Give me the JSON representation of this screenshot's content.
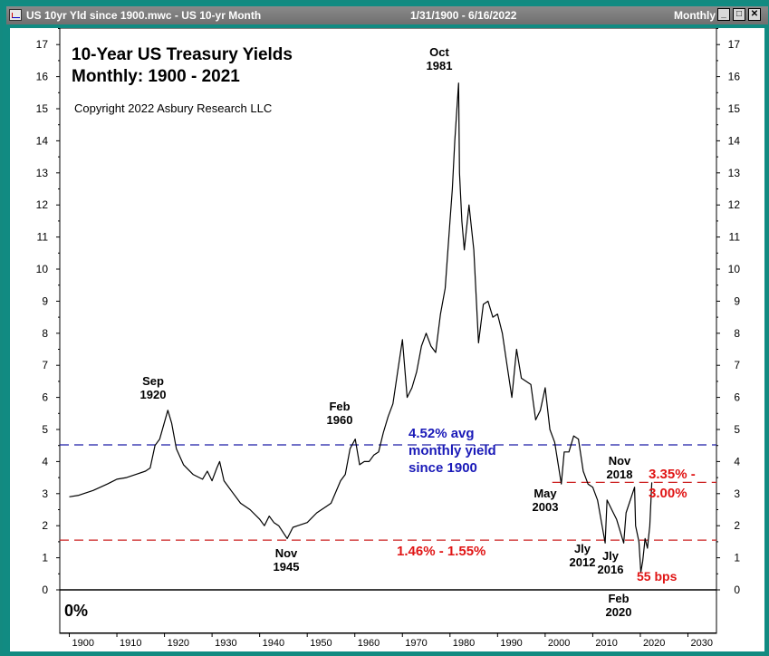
{
  "window": {
    "title": "US 10yr Yld since 1900.mwc - US 10-yr Month",
    "date_range": "1/31/1900 - 6/16/2022",
    "period": "Monthly",
    "minimize_label": "_",
    "maximize_label": "□",
    "close_label": "✕",
    "colors": {
      "titlebar": "#7a7a7a",
      "frame": "#118b82"
    }
  },
  "chart_data": {
    "type": "line",
    "title": "10-Year US Treasury Yields",
    "subtitle": "Monthly: 1900 - 2021",
    "copyright": "Copyright 2022 Asbury Research LLC",
    "zero_label": "0%",
    "xlabel": "",
    "ylabel": "",
    "x_range": [
      1898,
      2036
    ],
    "ylim": [
      0,
      17.5
    ],
    "x_ticks": [
      1900,
      1910,
      1920,
      1930,
      1940,
      1950,
      1960,
      1970,
      1980,
      1990,
      2000,
      2010,
      2020,
      2030
    ],
    "y_ticks": [
      0,
      1,
      2,
      3,
      4,
      5,
      6,
      7,
      8,
      9,
      10,
      11,
      12,
      13,
      14,
      15,
      16,
      17
    ],
    "series": [
      {
        "color": "#000000",
        "x": [
          1900.0,
          1902.0,
          1905.0,
          1908.0,
          1910.0,
          1912.0,
          1914.0,
          1916.0,
          1917.0,
          1918.0,
          1919.0,
          1920.7,
          1921.5,
          1922.5,
          1924.0,
          1926.0,
          1928.0,
          1929.0,
          1930.0,
          1931.0,
          1931.6,
          1932.5,
          1934.0,
          1936.0,
          1938.0,
          1940.0,
          1941.0,
          1942.0,
          1943.0,
          1944.0,
          1945.8,
          1947.0,
          1948.0,
          1950.0,
          1952.0,
          1954.0,
          1955.0,
          1957.0,
          1958.0,
          1959.0,
          1960.1,
          1961.0,
          1962.0,
          1963.0,
          1964.0,
          1965.0,
          1966.0,
          1967.0,
          1968.0,
          1969.0,
          1970.0,
          1971.0,
          1972.0,
          1973.0,
          1974.0,
          1975.0,
          1976.0,
          1977.0,
          1978.0,
          1979.0,
          1980.0,
          1980.5,
          1981.0,
          1981.8,
          1982.0,
          1982.5,
          1983.0,
          1984.0,
          1985.0,
          1986.0,
          1987.0,
          1988.0,
          1989.0,
          1990.0,
          1991.0,
          1992.0,
          1993.0,
          1994.0,
          1995.0,
          1996.0,
          1997.0,
          1998.0,
          1999.0,
          2000.0,
          2001.0,
          2002.0,
          2003.4,
          2004.0,
          2005.0,
          2006.0,
          2007.0,
          2008.0,
          2009.0,
          2010.0,
          2011.0,
          2012.6,
          2013.0,
          2014.0,
          2015.0,
          2016.5,
          2017.0,
          2018.8,
          2019.0,
          2019.7,
          2020.1,
          2020.5,
          2021.0,
          2021.5,
          2022.0,
          2022.4
        ],
        "values": [
          2.9,
          2.95,
          3.1,
          3.3,
          3.45,
          3.5,
          3.6,
          3.7,
          3.8,
          4.5,
          4.7,
          5.6,
          5.2,
          4.4,
          3.9,
          3.6,
          3.45,
          3.7,
          3.4,
          3.8,
          4.0,
          3.4,
          3.1,
          2.7,
          2.5,
          2.2,
          2.0,
          2.3,
          2.1,
          2.0,
          1.6,
          1.95,
          2.0,
          2.1,
          2.4,
          2.6,
          2.7,
          3.4,
          3.6,
          4.4,
          4.7,
          3.9,
          4.0,
          4.0,
          4.2,
          4.3,
          4.9,
          5.4,
          5.8,
          6.8,
          7.8,
          6.0,
          6.3,
          6.8,
          7.6,
          8.0,
          7.6,
          7.4,
          8.6,
          9.4,
          11.5,
          12.5,
          14.0,
          15.8,
          13.0,
          11.5,
          10.6,
          12.0,
          10.6,
          7.7,
          8.9,
          9.0,
          8.5,
          8.6,
          8.0,
          7.0,
          6.0,
          7.5,
          6.6,
          6.5,
          6.4,
          5.3,
          5.6,
          6.3,
          5.0,
          4.6,
          3.3,
          4.3,
          4.3,
          4.8,
          4.7,
          3.7,
          3.3,
          3.2,
          2.8,
          1.46,
          2.8,
          2.5,
          2.2,
          1.46,
          2.4,
          3.2,
          2.0,
          1.5,
          0.55,
          0.9,
          1.6,
          1.3,
          2.0,
          3.35
        ]
      }
    ],
    "reference_lines": [
      {
        "value": 4.52,
        "color": "#1d1da8"
      },
      {
        "value": 3.35,
        "color": "#cc2020"
      },
      {
        "value": 1.55,
        "color": "#cc2020"
      }
    ],
    "callouts": [
      {
        "lines": [
          "4.52% avg",
          "monthly yield",
          "since 1900"
        ],
        "color": "#1a1ab8"
      },
      {
        "lines": [
          "3.35% -",
          "3.00%"
        ],
        "color": "#e01515"
      },
      {
        "lines": [
          "1.46% - 1.55%"
        ],
        "color": "#e01515"
      },
      {
        "lines": [
          "55 bps"
        ],
        "color": "#e01515"
      }
    ],
    "annotations": [
      {
        "lines": [
          "Sep",
          "1920"
        ]
      },
      {
        "lines": [
          "Feb",
          "1960"
        ]
      },
      {
        "lines": [
          "Oct",
          "1981"
        ]
      },
      {
        "lines": [
          "Nov",
          "1945"
        ]
      },
      {
        "lines": [
          "May",
          "2003"
        ]
      },
      {
        "lines": [
          "Nov",
          "2018"
        ]
      },
      {
        "lines": [
          "Jly",
          "2012"
        ]
      },
      {
        "lines": [
          "Jly",
          "2016"
        ]
      },
      {
        "lines": [
          "Feb",
          "2020"
        ]
      }
    ],
    "grid": false,
    "legend": "none"
  }
}
